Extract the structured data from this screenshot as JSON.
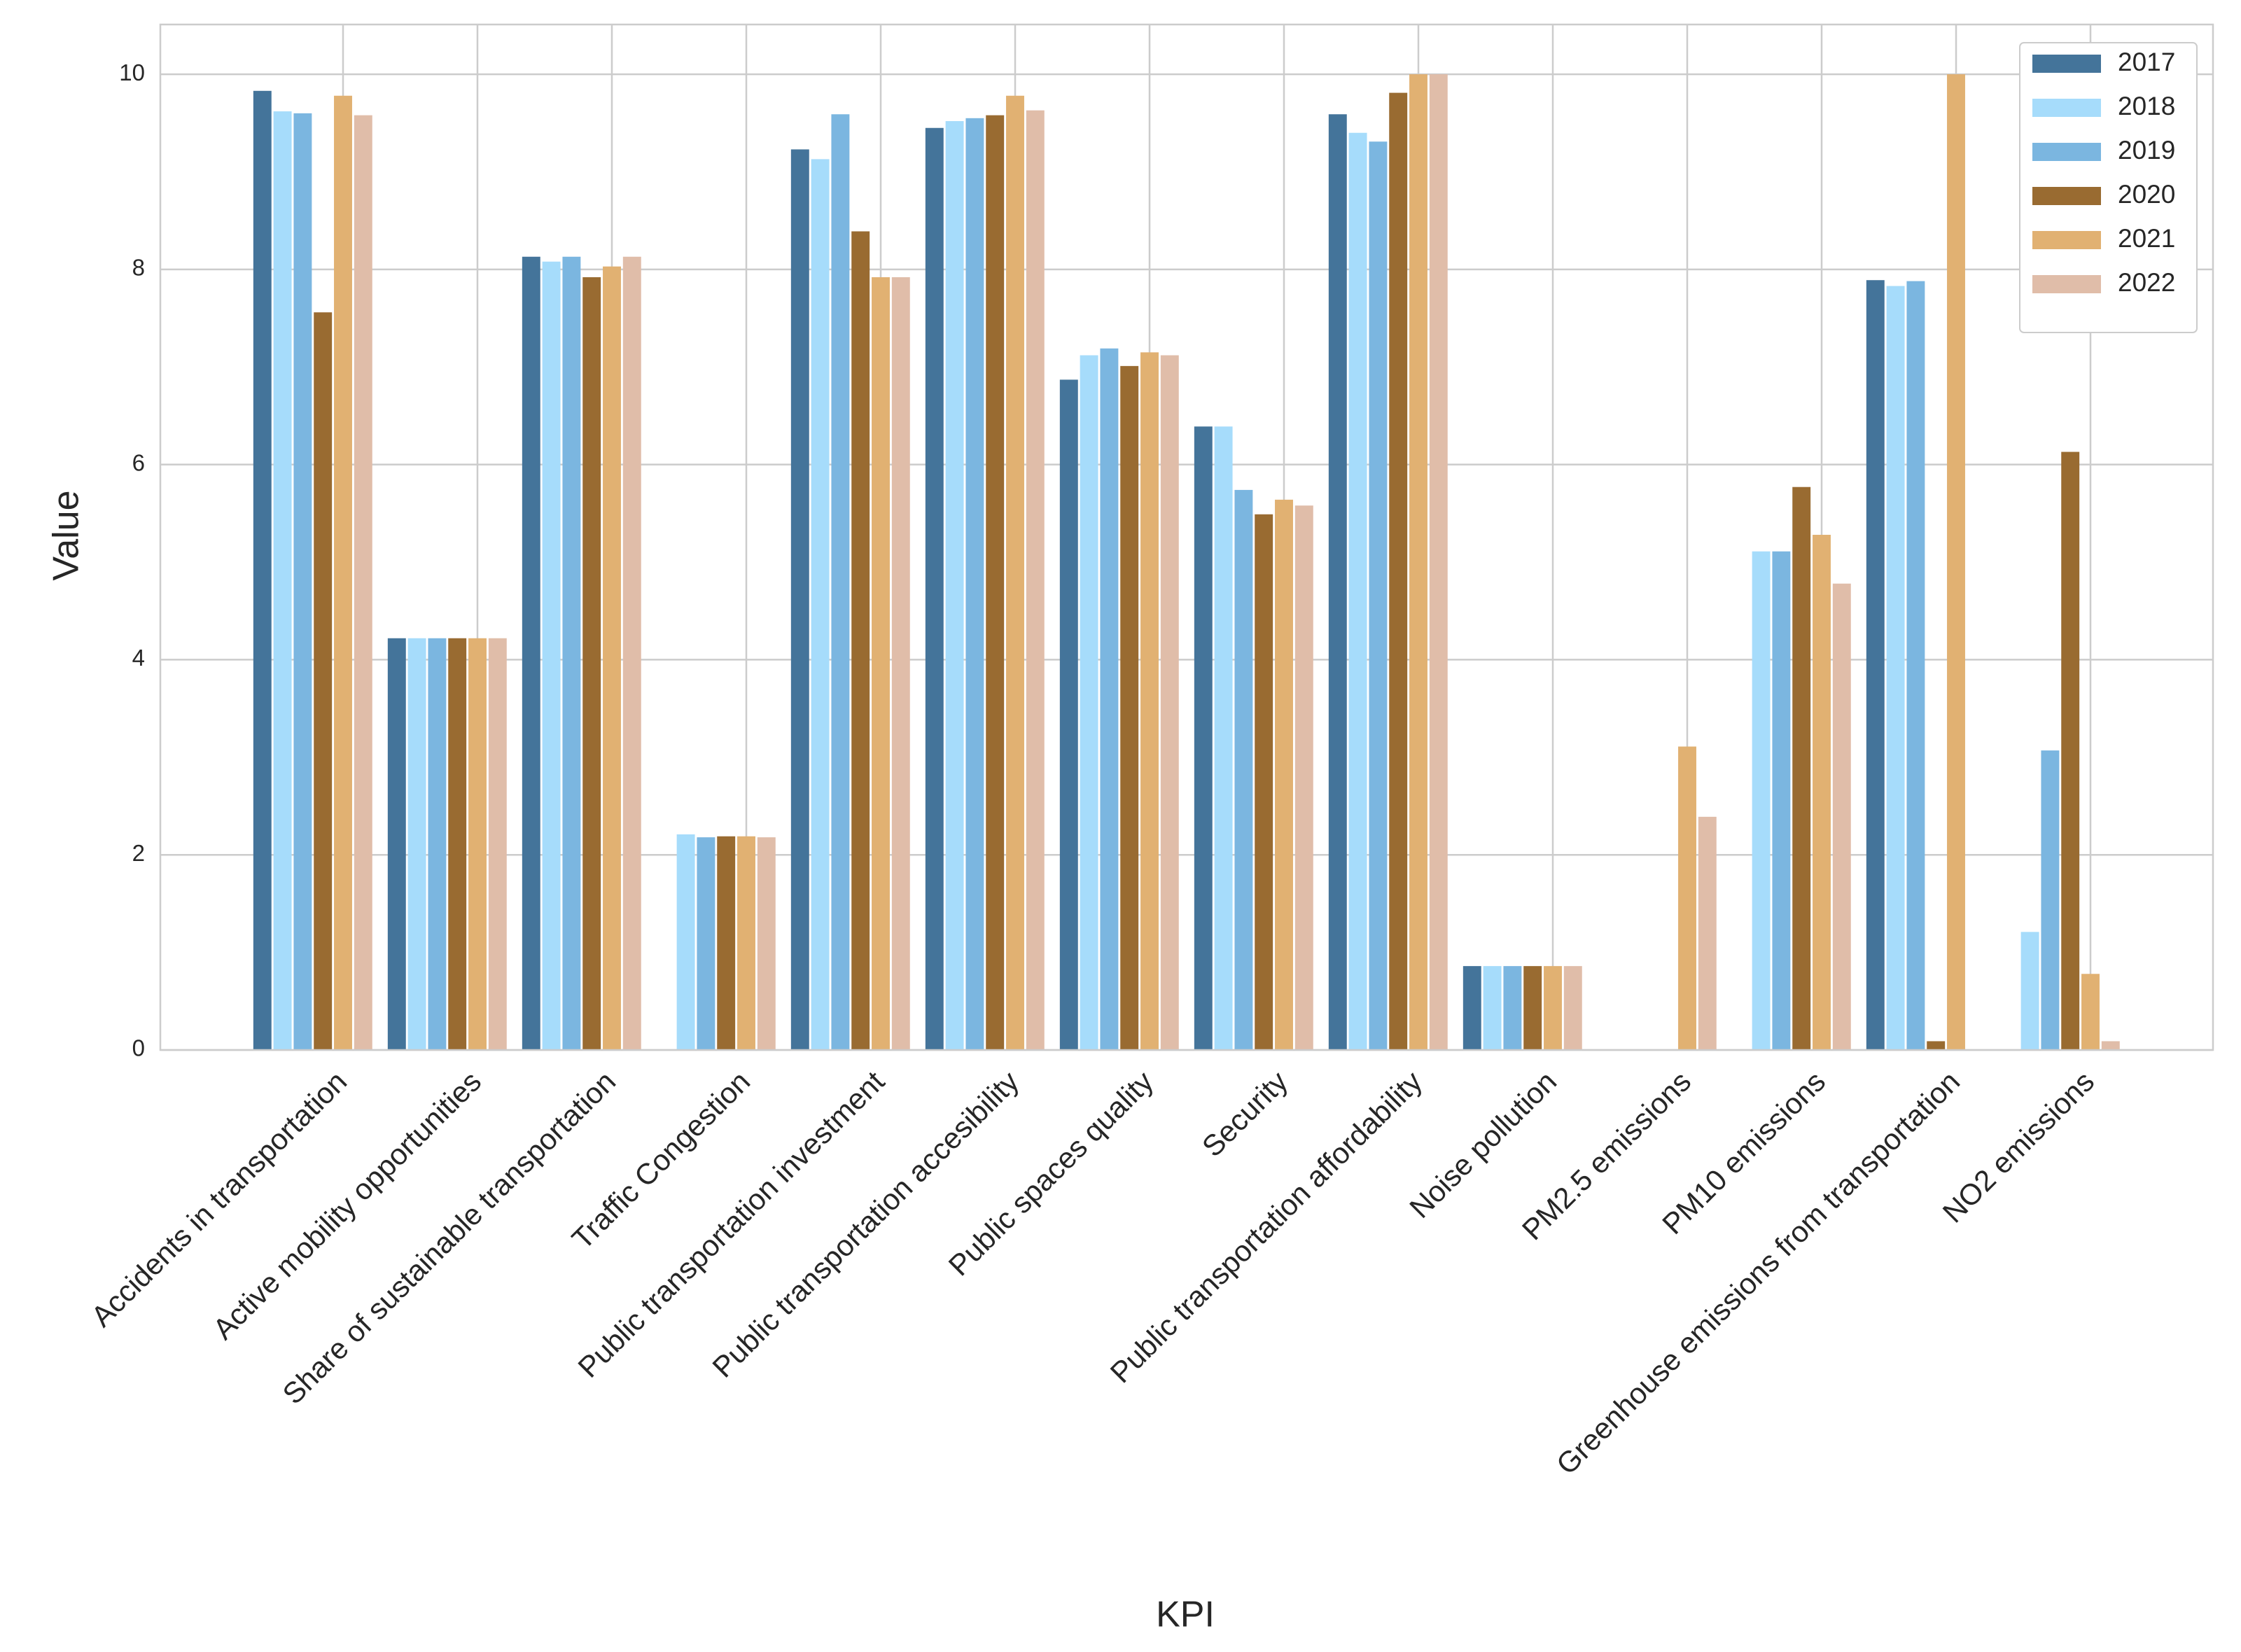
{
  "chart_data": {
    "type": "bar",
    "x_label": "KPI",
    "y_label": "Value",
    "categories": [
      "Accidents in transportation",
      "Active mobility opportunities",
      "Share of sustainable transportation",
      "Traffic Congestion",
      "Public transportation investment",
      "Public transportation accesibility",
      "Public spaces quality",
      "Security",
      "Public transportation affordability",
      "Noise pollution",
      "PM2.5 emissions",
      "PM10 emissions",
      "Greenhouse emissions from transportation",
      "NO2 emissions"
    ],
    "series": [
      {
        "name": "2017",
        "color": "#44749a",
        "values": [
          9.83,
          4.22,
          8.13,
          null,
          9.23,
          9.45,
          6.87,
          6.39,
          9.59,
          0.86,
          null,
          null,
          7.89,
          null
        ]
      },
      {
        "name": "2018",
        "color": "#a6dcfb",
        "values": [
          9.62,
          4.22,
          8.08,
          2.21,
          9.13,
          9.52,
          7.12,
          6.39,
          9.4,
          0.86,
          null,
          5.11,
          7.83,
          1.21
        ]
      },
      {
        "name": "2019",
        "color": "#7bb6e0",
        "values": [
          9.6,
          4.22,
          8.13,
          2.18,
          9.59,
          9.55,
          7.19,
          5.74,
          9.31,
          0.86,
          null,
          5.11,
          7.88,
          3.07
        ]
      },
      {
        "name": "2020",
        "color": "#996b31",
        "values": [
          7.56,
          4.22,
          7.92,
          2.19,
          8.39,
          9.58,
          7.01,
          5.49,
          9.81,
          0.86,
          null,
          5.77,
          0.09,
          6.13
        ]
      },
      {
        "name": "2021",
        "color": "#e1b172",
        "values": [
          9.78,
          4.22,
          8.03,
          2.19,
          7.92,
          9.78,
          7.15,
          5.64,
          10.0,
          0.86,
          3.11,
          5.28,
          10.0,
          0.78
        ]
      },
      {
        "name": "2022",
        "color": "#e0bda9",
        "values": [
          9.58,
          4.22,
          8.13,
          2.18,
          7.92,
          9.63,
          7.12,
          5.58,
          10.0,
          0.86,
          2.39,
          4.78,
          null,
          0.09
        ]
      }
    ],
    "ylim": [
      0,
      10.51
    ],
    "yticks": [
      0,
      2,
      4,
      6,
      8,
      10
    ],
    "grid": true,
    "legend": "upper right"
  }
}
